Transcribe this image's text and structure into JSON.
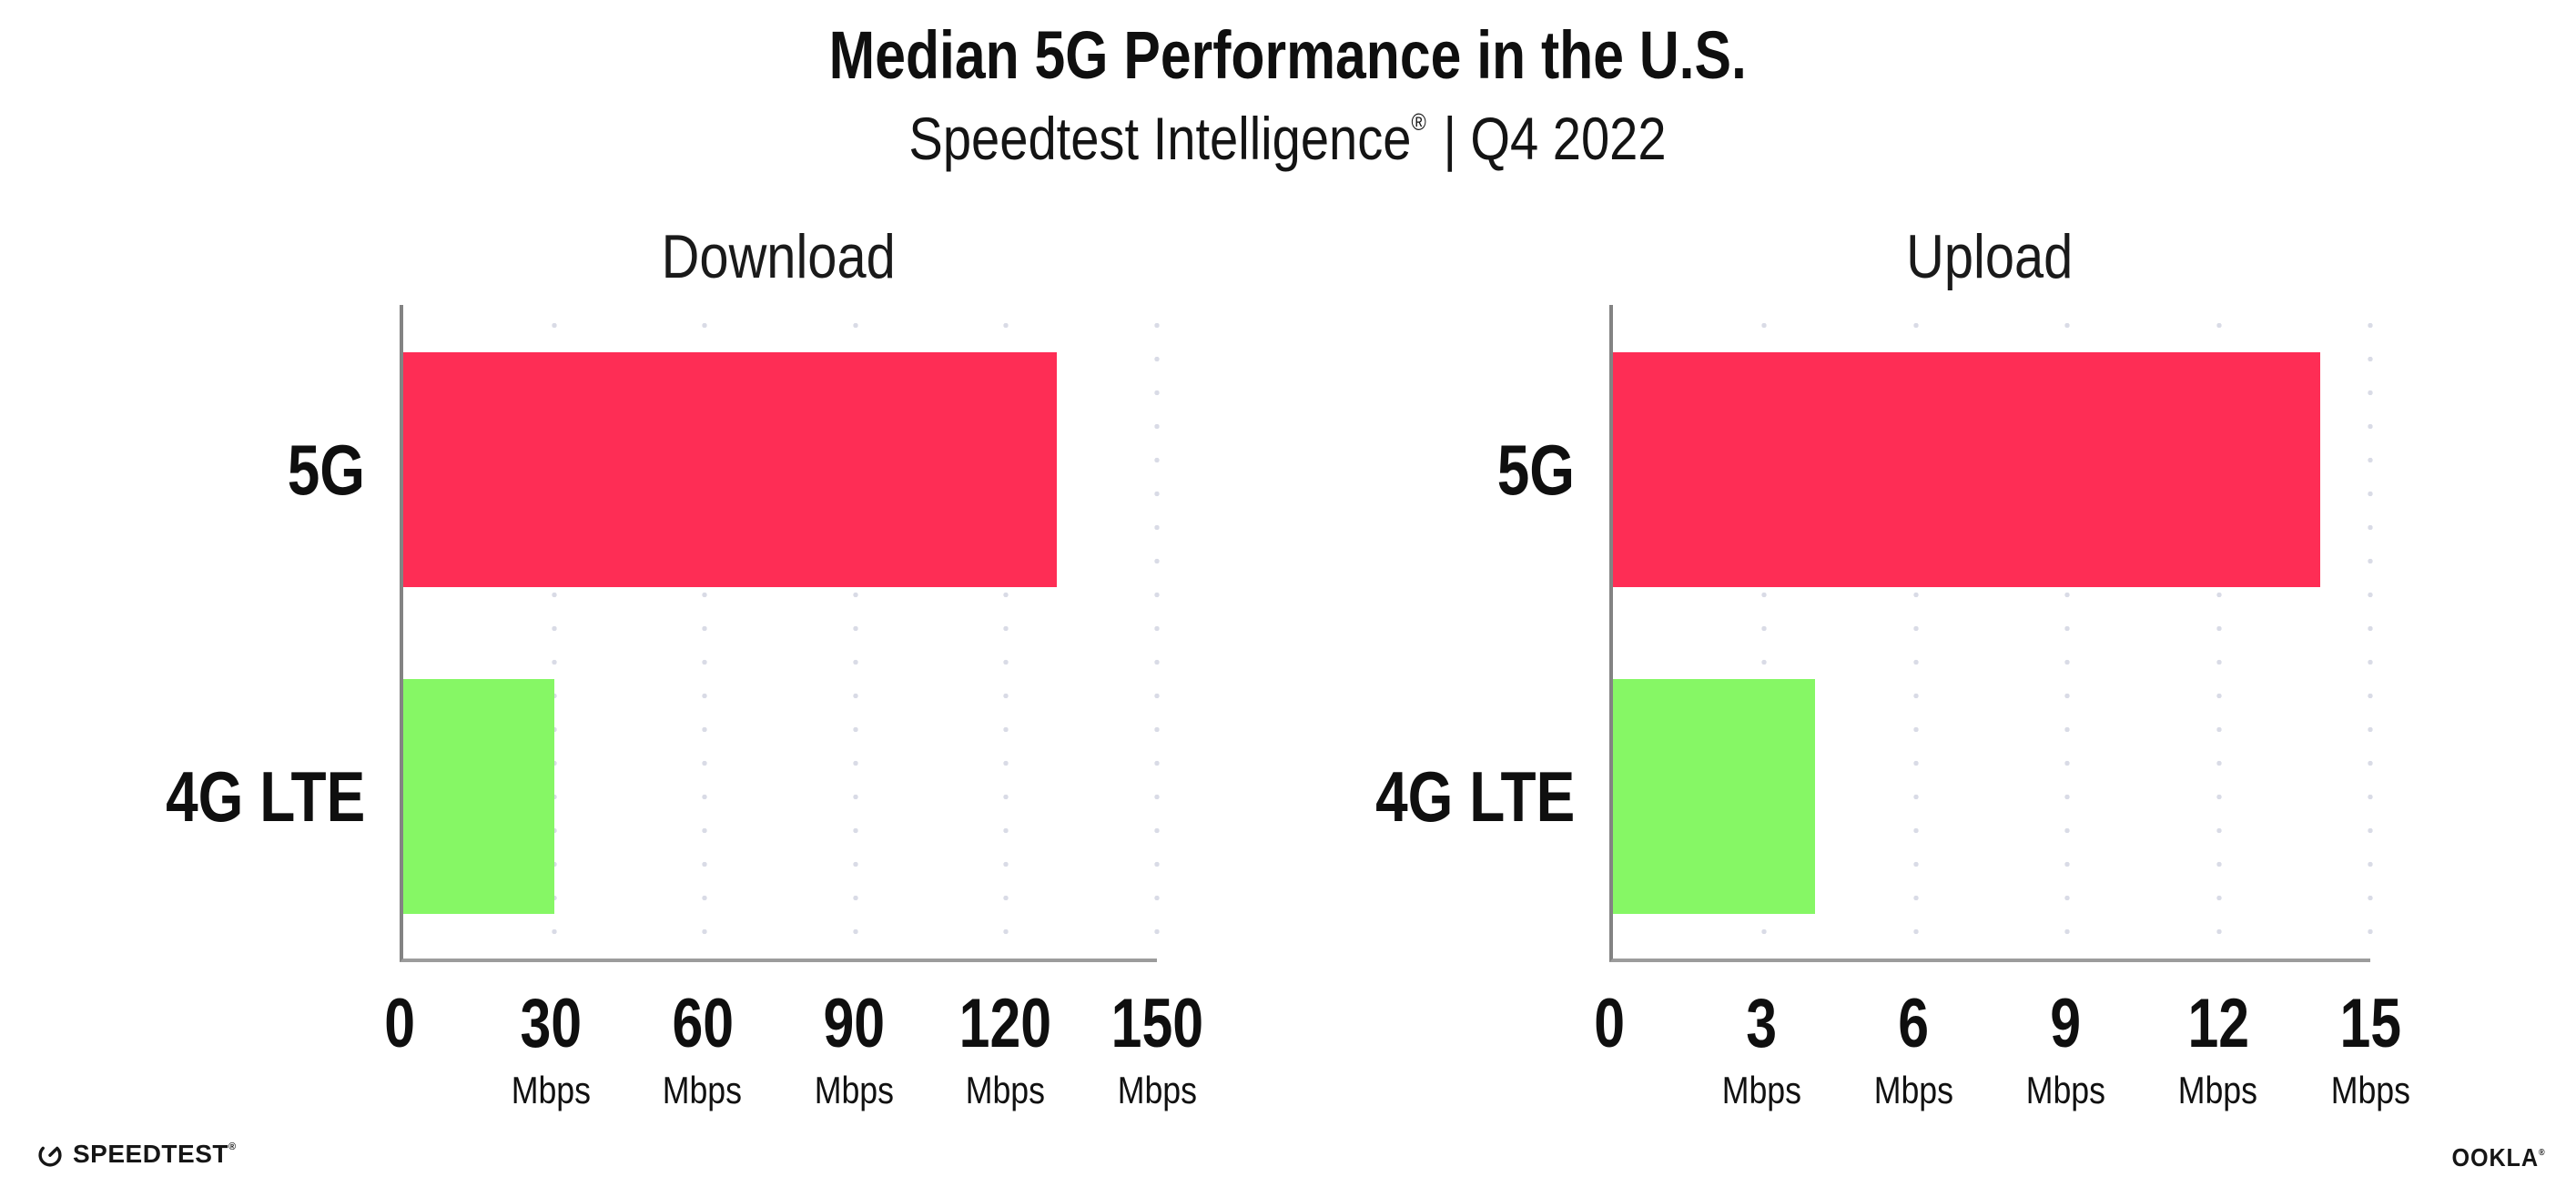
{
  "header": {
    "title": "Median 5G Performance in the U.S.",
    "subtitle_brand": "Speedtest Intelligence",
    "subtitle_reg": "®",
    "subtitle_sep": "|",
    "subtitle_period": "Q4 2022"
  },
  "chart_data": [
    {
      "type": "bar",
      "orientation": "horizontal",
      "title": "Download",
      "categories": [
        "5G",
        "4G LTE"
      ],
      "values": [
        130,
        30
      ],
      "unit": "Mbps",
      "xlim": [
        0,
        150
      ],
      "xticks": [
        0,
        30,
        60,
        90,
        120,
        150
      ],
      "tick_unit_label": "Mbps",
      "bar_colors": [
        "#FE2D55",
        "#86F765"
      ],
      "grid": "dotted-vertical",
      "legend": "none"
    },
    {
      "type": "bar",
      "orientation": "horizontal",
      "title": "Upload",
      "categories": [
        "5G",
        "4G LTE"
      ],
      "values": [
        14,
        4
      ],
      "unit": "Mbps",
      "xlim": [
        0,
        15
      ],
      "xticks": [
        0,
        3,
        6,
        9,
        12,
        15
      ],
      "tick_unit_label": "Mbps",
      "bar_colors": [
        "#FE2D55",
        "#86F765"
      ],
      "grid": "dotted-vertical",
      "legend": "none"
    }
  ],
  "colors": {
    "bar_5g": "#FE2D55",
    "bar_4g_lte": "#86F765",
    "axis_y": "#838383",
    "axis_x": "#9c9c9c",
    "gridline": "#d9dbe6",
    "text": "#0f0f0f"
  },
  "footer": {
    "speedtest_label": "SPEEDTEST",
    "speedtest_reg": "®",
    "ookla_label": "OOKLA",
    "ookla_reg": "®"
  }
}
